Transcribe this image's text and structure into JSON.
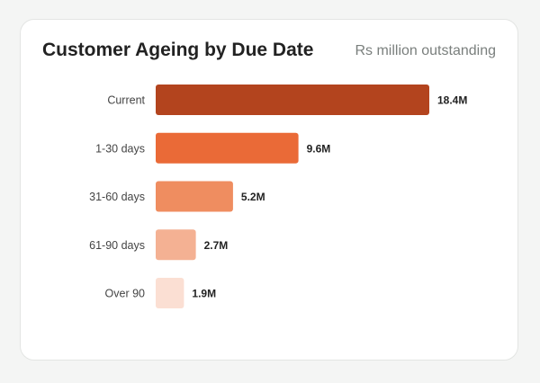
{
  "chart_data": {
    "type": "bar",
    "orientation": "horizontal",
    "title": "Customer Ageing by Due Date",
    "subtitle": "Rs million outstanding",
    "categories": [
      "Current",
      "1-30 days",
      "31-60 days",
      "61-90 days",
      "Over 90"
    ],
    "values": [
      18.4,
      9.6,
      5.2,
      2.7,
      1.9
    ],
    "value_labels": [
      "18.4M",
      "9.6M",
      "5.2M",
      "2.7M",
      "1.9M"
    ],
    "colors": [
      "#b3441e",
      "#ea6a37",
      "#ef8d60",
      "#f4b193",
      "#fbdfd3"
    ],
    "xlabel": "",
    "ylabel": "",
    "grid": false,
    "legend": "none"
  }
}
